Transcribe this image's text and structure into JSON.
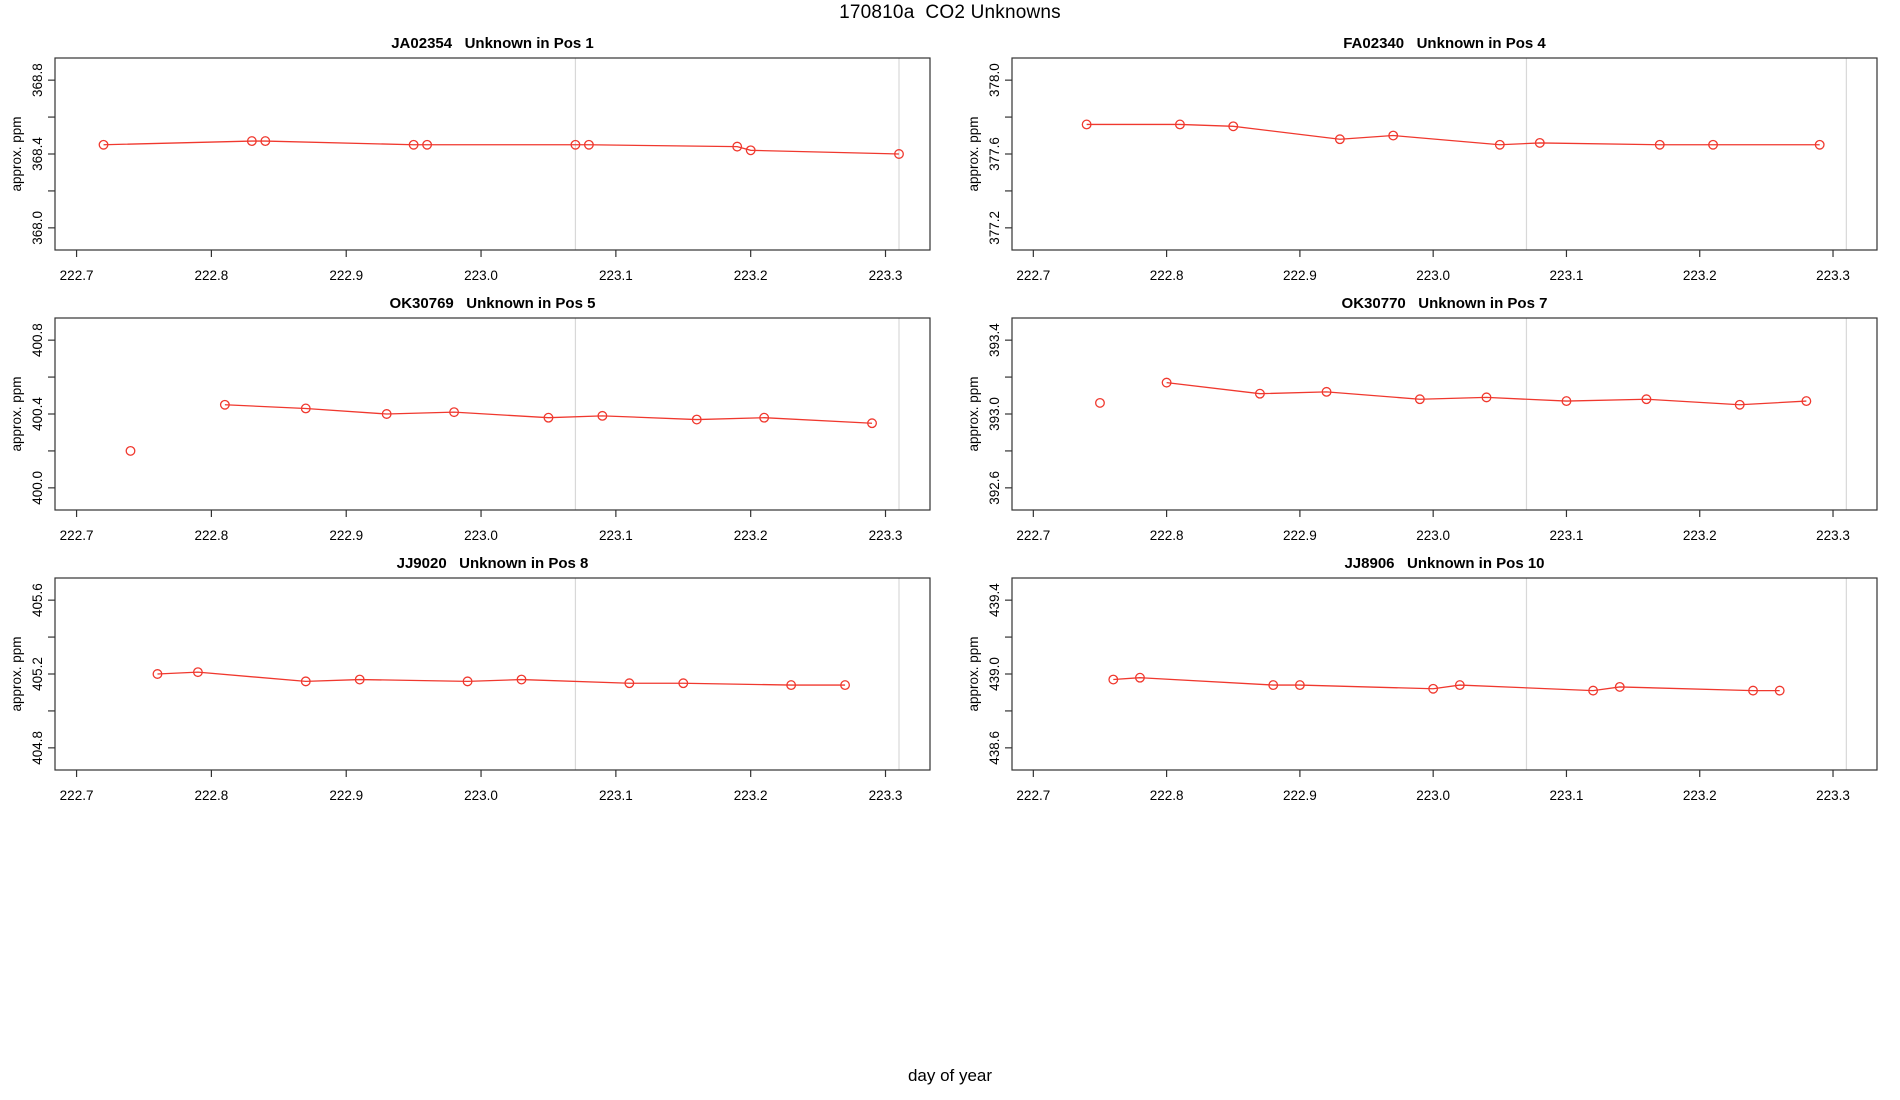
{
  "title": "170810a  CO2 Unknowns",
  "xlabel": "day of year",
  "ylabel": "approx. ppm",
  "colors": {
    "line": "#f0382e",
    "marker": "#f0382e",
    "vline": "#d8d8d8",
    "axis": "#333333",
    "text": "#000000"
  },
  "axes": {
    "xlim": [
      222.684,
      223.333
    ],
    "xticks": [
      222.7,
      222.8,
      222.9,
      223.0,
      223.1,
      223.2,
      223.3
    ],
    "vlines": [
      223.07,
      223.31
    ],
    "grid": false
  },
  "chart_data": [
    {
      "type": "line",
      "id": "JA02354",
      "position": "Pos 1",
      "title": "JA02354   Unknown in Pos 1",
      "ylabel": "approx. ppm",
      "yticks": [
        368.0,
        368.2,
        368.4,
        368.6,
        368.8
      ],
      "ytick_labels": [
        368.0,
        368.4,
        368.8
      ],
      "ylim": [
        367.88,
        368.92
      ],
      "x": [
        222.72,
        222.83,
        222.84,
        222.95,
        222.96,
        223.07,
        223.08,
        223.19,
        223.2,
        223.31
      ],
      "y": [
        368.45,
        368.47,
        368.47,
        368.45,
        368.45,
        368.45,
        368.45,
        368.44,
        368.42,
        368.4
      ],
      "outlier": null
    },
    {
      "type": "line",
      "id": "FA02340",
      "position": "Pos 4",
      "title": "FA02340   Unknown in Pos 4",
      "ylabel": "approx. ppm",
      "yticks": [
        377.2,
        377.4,
        377.6,
        377.8,
        378.0
      ],
      "ytick_labels": [
        377.2,
        377.6,
        378.0
      ],
      "ylim": [
        377.08,
        378.12
      ],
      "x": [
        222.74,
        222.81,
        222.85,
        222.93,
        222.97,
        223.05,
        223.08,
        223.17,
        223.21,
        223.29
      ],
      "y": [
        377.76,
        377.76,
        377.75,
        377.68,
        377.7,
        377.65,
        377.66,
        377.65,
        377.65,
        377.65
      ],
      "outlier": null
    },
    {
      "type": "line",
      "id": "OK30769",
      "position": "Pos 5",
      "title": "OK30769   Unknown in Pos 5",
      "ylabel": "approx. ppm",
      "yticks": [
        400.0,
        400.2,
        400.4,
        400.6,
        400.8
      ],
      "ytick_labels": [
        400.0,
        400.4,
        400.8
      ],
      "ylim": [
        399.88,
        400.92
      ],
      "x": [
        222.81,
        222.87,
        222.93,
        222.98,
        223.05,
        223.09,
        223.16,
        223.21,
        223.29
      ],
      "y": [
        400.45,
        400.43,
        400.4,
        400.41,
        400.38,
        400.39,
        400.37,
        400.38,
        400.35
      ],
      "outlier": {
        "x": 222.74,
        "y": 400.2
      }
    },
    {
      "type": "line",
      "id": "OK30770",
      "position": "Pos 7",
      "title": "OK30770   Unknown in Pos 7",
      "ylabel": "approx. ppm",
      "yticks": [
        392.6,
        392.8,
        393.0,
        393.2,
        393.4
      ],
      "ytick_labels": [
        392.6,
        393.0,
        393.4
      ],
      "ylim": [
        392.48,
        393.52
      ],
      "x": [
        222.8,
        222.87,
        222.92,
        222.99,
        223.04,
        223.1,
        223.16,
        223.23,
        223.28
      ],
      "y": [
        393.17,
        393.11,
        393.12,
        393.08,
        393.09,
        393.07,
        393.08,
        393.05,
        393.07
      ],
      "outlier": {
        "x": 222.75,
        "y": 393.06
      }
    },
    {
      "type": "line",
      "id": "JJ9020",
      "position": "Pos 8",
      "title": "JJ9020   Unknown in Pos 8",
      "ylabel": "approx. ppm",
      "yticks": [
        404.8,
        405.0,
        405.2,
        405.4,
        405.6
      ],
      "ytick_labels": [
        404.8,
        405.2,
        405.6
      ],
      "ylim": [
        404.68,
        405.72
      ],
      "x": [
        222.76,
        222.79,
        222.87,
        222.91,
        222.99,
        223.03,
        223.11,
        223.15,
        223.23,
        223.27
      ],
      "y": [
        405.2,
        405.21,
        405.16,
        405.17,
        405.16,
        405.17,
        405.15,
        405.15,
        405.14,
        405.14
      ],
      "outlier": null
    },
    {
      "type": "line",
      "id": "JJ8906",
      "position": "Pos 10",
      "title": "JJ8906   Unknown in Pos 10",
      "ylabel": "approx. ppm",
      "yticks": [
        438.6,
        438.8,
        439.0,
        439.2,
        439.4
      ],
      "ytick_labels": [
        438.6,
        439.0,
        439.4
      ],
      "ylim": [
        438.48,
        439.52
      ],
      "x": [
        222.76,
        222.78,
        222.88,
        222.9,
        223.0,
        223.02,
        223.12,
        223.14,
        223.24,
        223.26
      ],
      "y": [
        438.97,
        438.98,
        438.94,
        438.94,
        438.92,
        438.94,
        438.91,
        438.93,
        438.91,
        438.91
      ],
      "outlier": null
    }
  ]
}
